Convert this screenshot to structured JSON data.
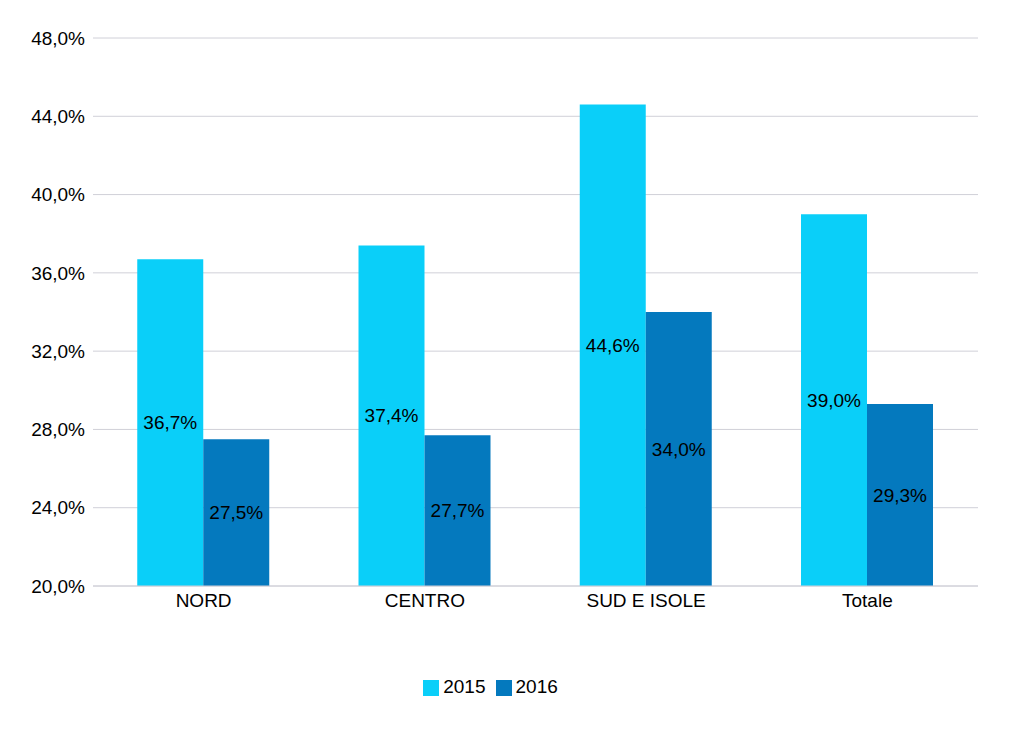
{
  "chart_data": {
    "type": "bar",
    "categories": [
      "NORD",
      "CENTRO",
      "SUD E ISOLE",
      "Totale"
    ],
    "series": [
      {
        "name": "2015",
        "color": "#0ACFF9",
        "values": [
          36.7,
          37.4,
          44.6,
          39.0
        ],
        "value_labels": [
          "36,7%",
          "37,4%",
          "44,6%",
          "39,0%"
        ]
      },
      {
        "name": "2016",
        "color": "#0479BE",
        "values": [
          27.5,
          27.7,
          34.0,
          29.3
        ],
        "value_labels": [
          "27,5%",
          "27,7%",
          "34,0%",
          "29,3%"
        ]
      }
    ],
    "ylim": [
      20,
      48
    ],
    "yticks": [
      {
        "value": 20,
        "label": "20,0%"
      },
      {
        "value": 24,
        "label": "24,0%"
      },
      {
        "value": 28,
        "label": "28,0%"
      },
      {
        "value": 32,
        "label": "32,0%"
      },
      {
        "value": 36,
        "label": "36,0%"
      },
      {
        "value": 40,
        "label": "40,0%"
      },
      {
        "value": 44,
        "label": "44,0%"
      },
      {
        "value": 48,
        "label": "48,0%"
      }
    ],
    "grid": true,
    "legend": "bottom",
    "data_labels": true
  }
}
